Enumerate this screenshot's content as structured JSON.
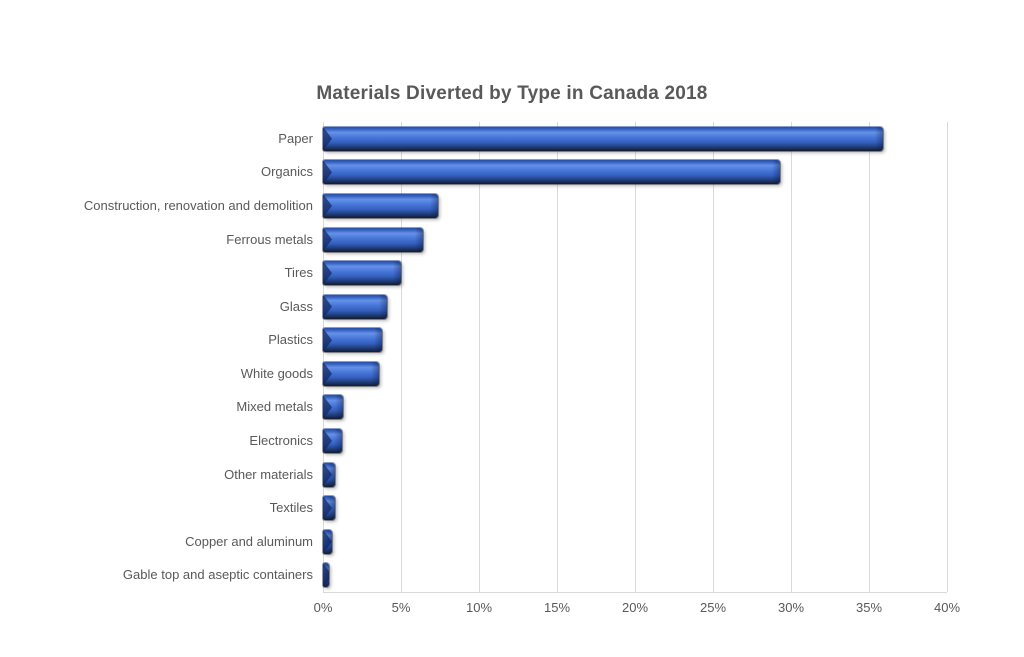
{
  "page": {
    "background_color": "#ffffff"
  },
  "chart_data": {
    "type": "bar",
    "orientation": "horizontal",
    "title": "Materials Diverted by Type in Canada 2018",
    "categories": [
      "Paper",
      "Organics",
      "Construction, renovation and demolition",
      "Ferrous metals",
      "Tires",
      "Glass",
      "Plastics",
      "White goods",
      "Mixed metals",
      "Electronics",
      "Other materials",
      "Textiles",
      "Copper and aluminum",
      "Gable top and aseptic containers"
    ],
    "values": [
      35.9,
      29.3,
      7.4,
      6.4,
      5.0,
      4.1,
      3.8,
      3.6,
      1.3,
      1.2,
      0.8,
      0.8,
      0.6,
      0.4
    ],
    "value_unit": "%",
    "xlabel": "",
    "ylabel": "",
    "xlim": [
      0,
      40
    ],
    "x_tick_values": [
      0,
      5,
      10,
      15,
      20,
      25,
      30,
      35,
      40
    ],
    "x_ticks": [
      "0%",
      "5%",
      "10%",
      "15%",
      "20%",
      "25%",
      "30%",
      "35%",
      "40%"
    ],
    "grid": "vertical-gridlines-on",
    "legend": "none",
    "bar_style": "3d-bevel",
    "colors": {
      "gridline": "#d9d9d9",
      "axis_line": "#d9d9d9",
      "text": "#595959",
      "bar_edge_top": "#2a50a0",
      "bar_highlight": "#6591e8",
      "bar_mid": "#4675d6",
      "bar_base": "#335fc0",
      "bar_shade": "#1d3a78",
      "bar_dark": "#0e1c3c"
    }
  }
}
